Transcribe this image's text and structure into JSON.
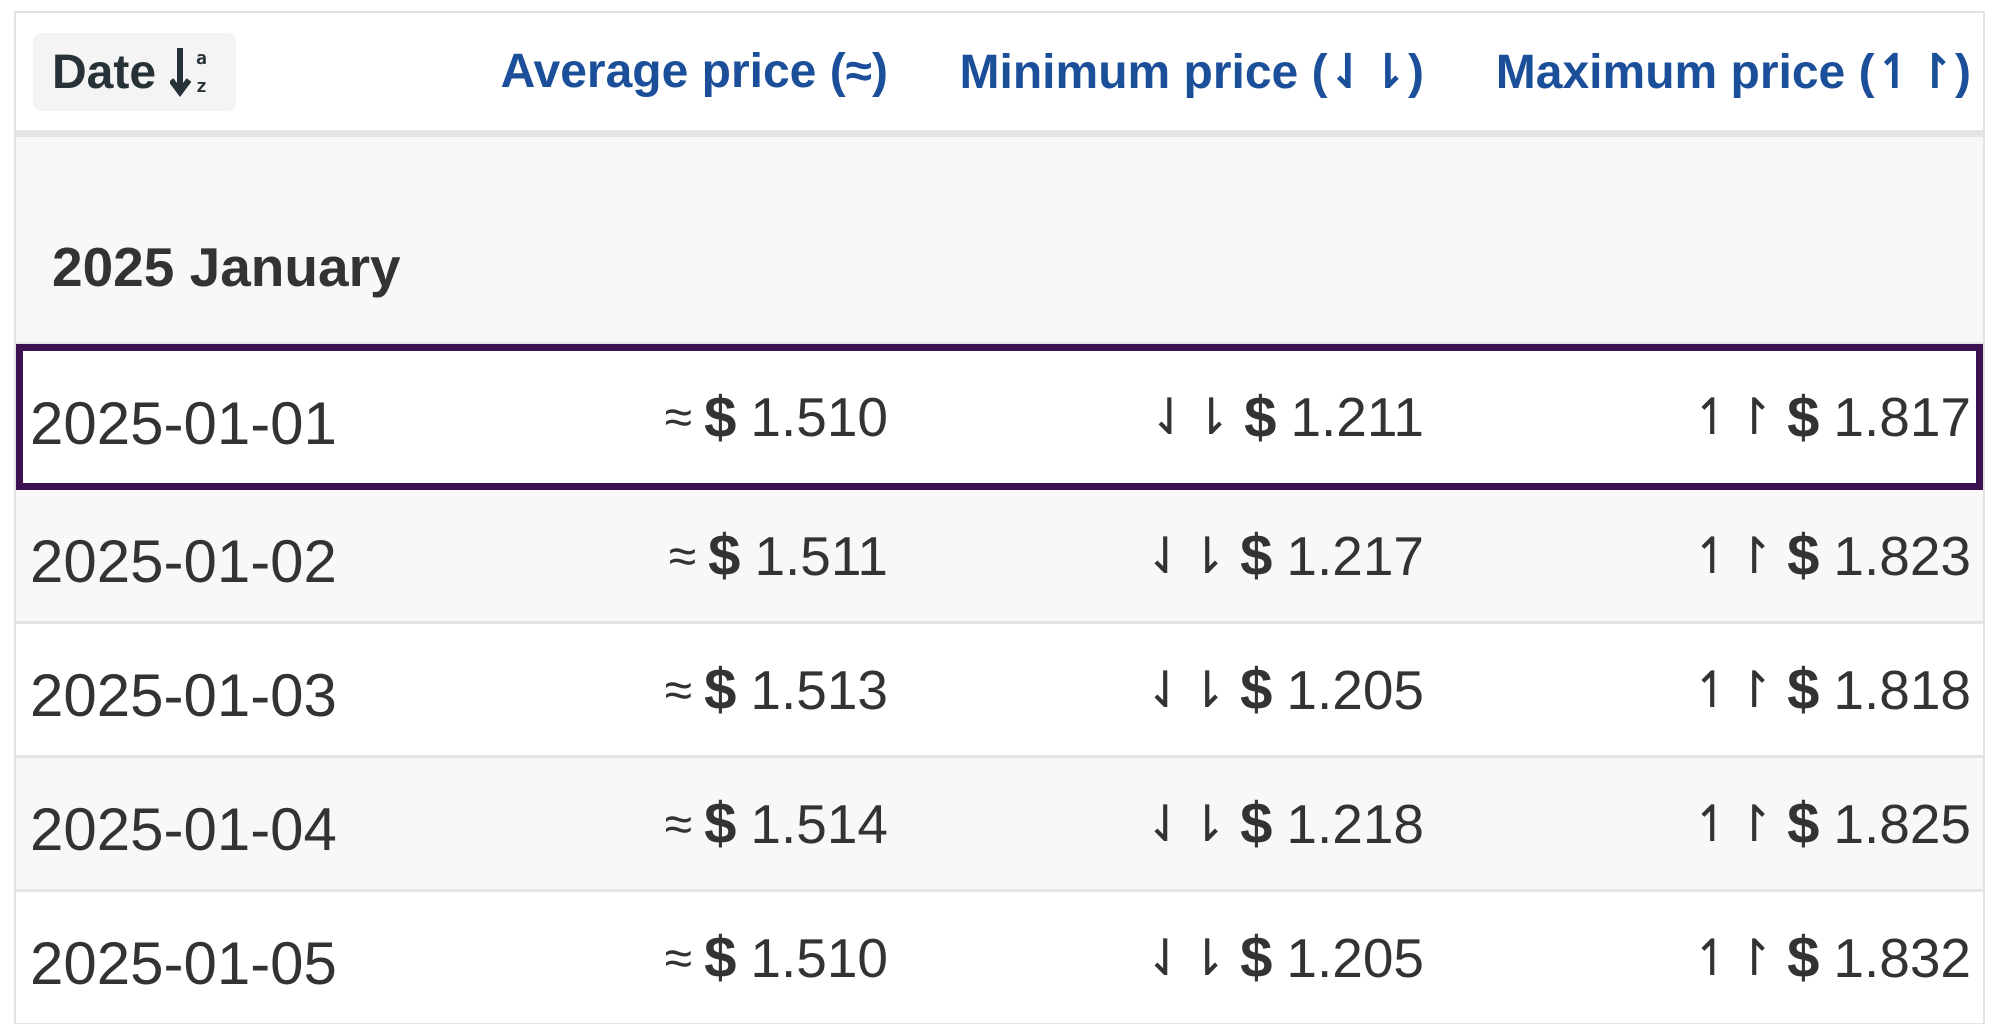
{
  "table": {
    "headers": {
      "date": "Date",
      "average": "Average price (≈)",
      "minimum": "Minimum price (⇃⇂)",
      "maximum": "Maximum price (↿↾)"
    },
    "sort_icon": "sort-a-z-down-icon",
    "month_group": "2025 January",
    "symbols": {
      "average": "≈",
      "minimum": "⇃⇂",
      "maximum": "↿↾",
      "currency": "$"
    },
    "rows": [
      {
        "date": "2025-01-01",
        "average": "1.510",
        "minimum": "1.211",
        "maximum": "1.817",
        "selected": true
      },
      {
        "date": "2025-01-02",
        "average": "1.511",
        "minimum": "1.217",
        "maximum": "1.823"
      },
      {
        "date": "2025-01-03",
        "average": "1.513",
        "minimum": "1.205",
        "maximum": "1.818"
      },
      {
        "date": "2025-01-04",
        "average": "1.514",
        "minimum": "1.218",
        "maximum": "1.825"
      },
      {
        "date": "2025-01-05",
        "average": "1.510",
        "minimum": "1.205",
        "maximum": "1.832"
      }
    ]
  },
  "colors": {
    "header_link": "#1b4f9a",
    "selected_outline": "#3e1153",
    "stripe": "#f8f8f8",
    "text": "#333333"
  }
}
